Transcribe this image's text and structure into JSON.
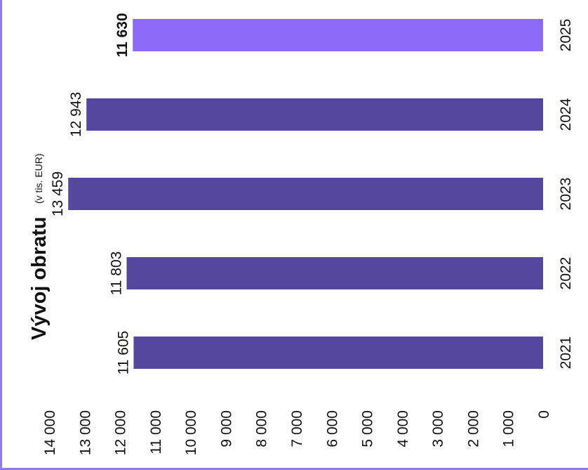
{
  "chart_data": {
    "type": "bar",
    "title": "Vývoj obratu",
    "subtitle": "(v tis. EUR)",
    "categories": [
      "2021",
      "2022",
      "2023",
      "2024",
      "2025"
    ],
    "values": [
      11605,
      11803,
      13459,
      12943,
      11630
    ],
    "value_labels": [
      "11 605",
      "11 803",
      "13 459",
      "12 943",
      "11 630"
    ],
    "highlight_index": 4,
    "ylim": [
      0,
      14000
    ],
    "y_ticks": [
      0,
      1000,
      2000,
      3000,
      4000,
      5000,
      6000,
      7000,
      8000,
      9000,
      10000,
      11000,
      12000,
      13000,
      14000
    ],
    "y_tick_labels": [
      "0",
      "1 000",
      "2 000",
      "3 000",
      "4 000",
      "5 000",
      "6 000",
      "7 000",
      "8 000",
      "9 000",
      "10 000",
      "11 000",
      "12 000",
      "13 000",
      "14 000"
    ],
    "grid": false,
    "colors": {
      "bar": "#55479e",
      "highlight": "#8d69f8",
      "frame": "#8f7de6",
      "text": "#111111"
    }
  }
}
